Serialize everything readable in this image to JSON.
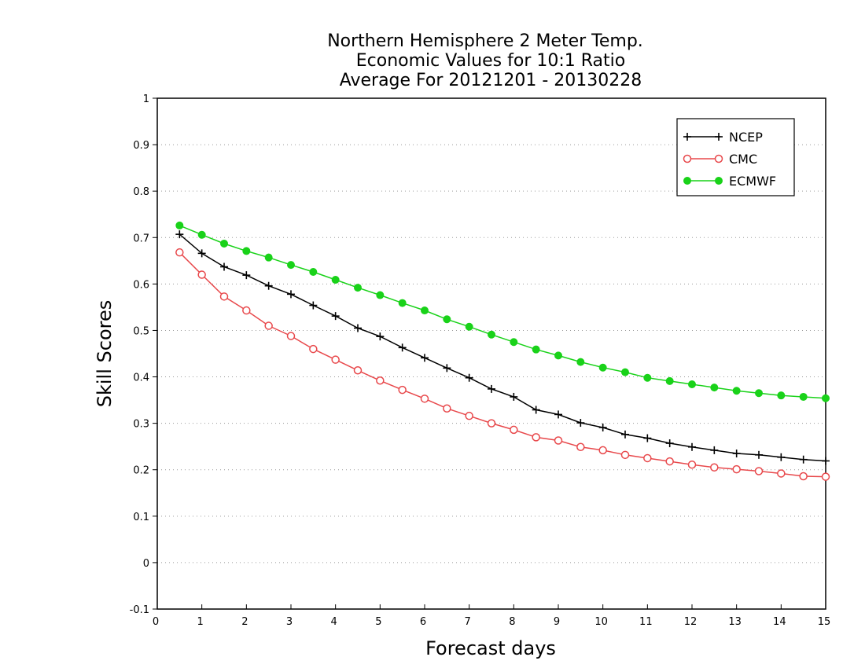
{
  "chart_data": {
    "type": "line",
    "title": [
      "Northern Hemisphere 2 Meter Temp.",
      "Economic Values for 10:1 Ratio",
      "Average For 20121201 - 20130228"
    ],
    "xlabel": "Forecast days",
    "ylabel": "Skill Scores",
    "xlim": [
      0,
      15
    ],
    "ylim": [
      -0.1,
      1
    ],
    "xticks": [
      "0",
      "1",
      "2",
      "3",
      "4",
      "5",
      "6",
      "7",
      "8",
      "9",
      "10",
      "11",
      "12",
      "13",
      "14",
      "15"
    ],
    "yticks": [
      "-0.1",
      "0",
      "0.1",
      "0.2",
      "0.3",
      "0.4",
      "0.5",
      "0.6",
      "0.7",
      "0.8",
      "0.9",
      "1"
    ],
    "grid": "horizontal dotted",
    "legend_position": "top-right",
    "x": [
      0.5,
      1,
      1.5,
      2,
      2.5,
      3,
      3.5,
      4,
      4.5,
      5,
      5.5,
      6,
      6.5,
      7,
      7.5,
      8,
      8.5,
      9,
      9.5,
      10,
      10.5,
      11,
      11.5,
      12,
      12.5,
      13,
      13.5,
      14,
      14.5,
      15
    ],
    "series": [
      {
        "name": "NCEP",
        "color": "#000000",
        "marker": "plus",
        "values": [
          0.707,
          0.666,
          0.637,
          0.619,
          0.596,
          0.578,
          0.554,
          0.531,
          0.505,
          0.487,
          0.463,
          0.441,
          0.419,
          0.398,
          0.374,
          0.357,
          0.329,
          0.319,
          0.301,
          0.291,
          0.276,
          0.268,
          0.257,
          0.249,
          0.242,
          0.235,
          0.232,
          0.227,
          0.222,
          0.219
        ]
      },
      {
        "name": "CMC",
        "color": "#e8484b",
        "marker": "open-circle",
        "values": [
          0.668,
          0.62,
          0.573,
          0.543,
          0.51,
          0.488,
          0.46,
          0.437,
          0.414,
          0.392,
          0.372,
          0.353,
          0.332,
          0.316,
          0.3,
          0.286,
          0.27,
          0.263,
          0.249,
          0.242,
          0.232,
          0.225,
          0.218,
          0.211,
          0.205,
          0.201,
          0.197,
          0.192,
          0.186,
          0.185
        ]
      },
      {
        "name": "ECMWF",
        "color": "#19d219",
        "marker": "filled-circle",
        "values": [
          0.726,
          0.706,
          0.687,
          0.671,
          0.657,
          0.641,
          0.626,
          0.609,
          0.592,
          0.576,
          0.559,
          0.543,
          0.524,
          0.508,
          0.491,
          0.475,
          0.459,
          0.446,
          0.432,
          0.42,
          0.41,
          0.398,
          0.391,
          0.384,
          0.377,
          0.37,
          0.365,
          0.36,
          0.357,
          0.354
        ]
      }
    ]
  }
}
